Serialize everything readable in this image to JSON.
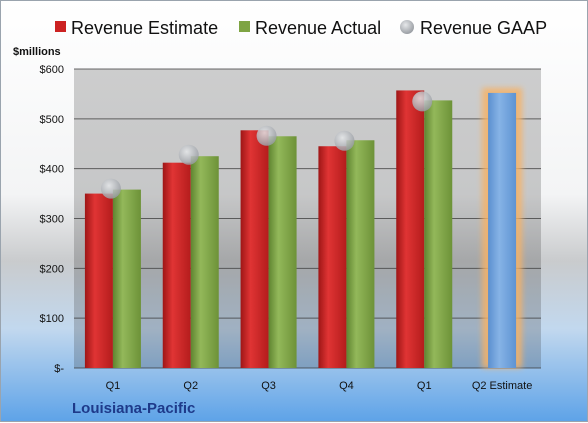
{
  "company": "Louisiana-Pacific",
  "chart_data": {
    "type": "bar",
    "title": "",
    "unit_label": "$millions",
    "ylim": [
      0,
      600
    ],
    "y_ticks": [
      {
        "value": 0,
        "label": "$-"
      },
      {
        "value": 100,
        "label": "$100"
      },
      {
        "value": 200,
        "label": "$200"
      },
      {
        "value": 300,
        "label": "$300"
      },
      {
        "value": 400,
        "label": "$400"
      },
      {
        "value": 500,
        "label": "$500"
      },
      {
        "value": 600,
        "label": "$600"
      }
    ],
    "grid": true,
    "legend_position": "top",
    "categories": [
      "Q1",
      "Q2",
      "Q3",
      "Q4",
      "Q1",
      "Q2 Estimate"
    ],
    "series": [
      {
        "name": "Revenue Estimate",
        "type": "bar",
        "color": "#cc2222",
        "values": [
          350,
          412,
          477,
          445,
          557,
          null
        ]
      },
      {
        "name": "Revenue Actual",
        "type": "bar",
        "color": "#7ea443",
        "values": [
          358,
          425,
          465,
          457,
          537,
          null
        ]
      },
      {
        "name": "Revenue GAAP",
        "type": "marker",
        "color": "#a3a7ad",
        "values": [
          360,
          428,
          466,
          456,
          535,
          null
        ]
      }
    ],
    "forecast": {
      "category_index": 5,
      "value": 552,
      "color": "#6ea0d8",
      "highlight": "#f6b266"
    }
  }
}
